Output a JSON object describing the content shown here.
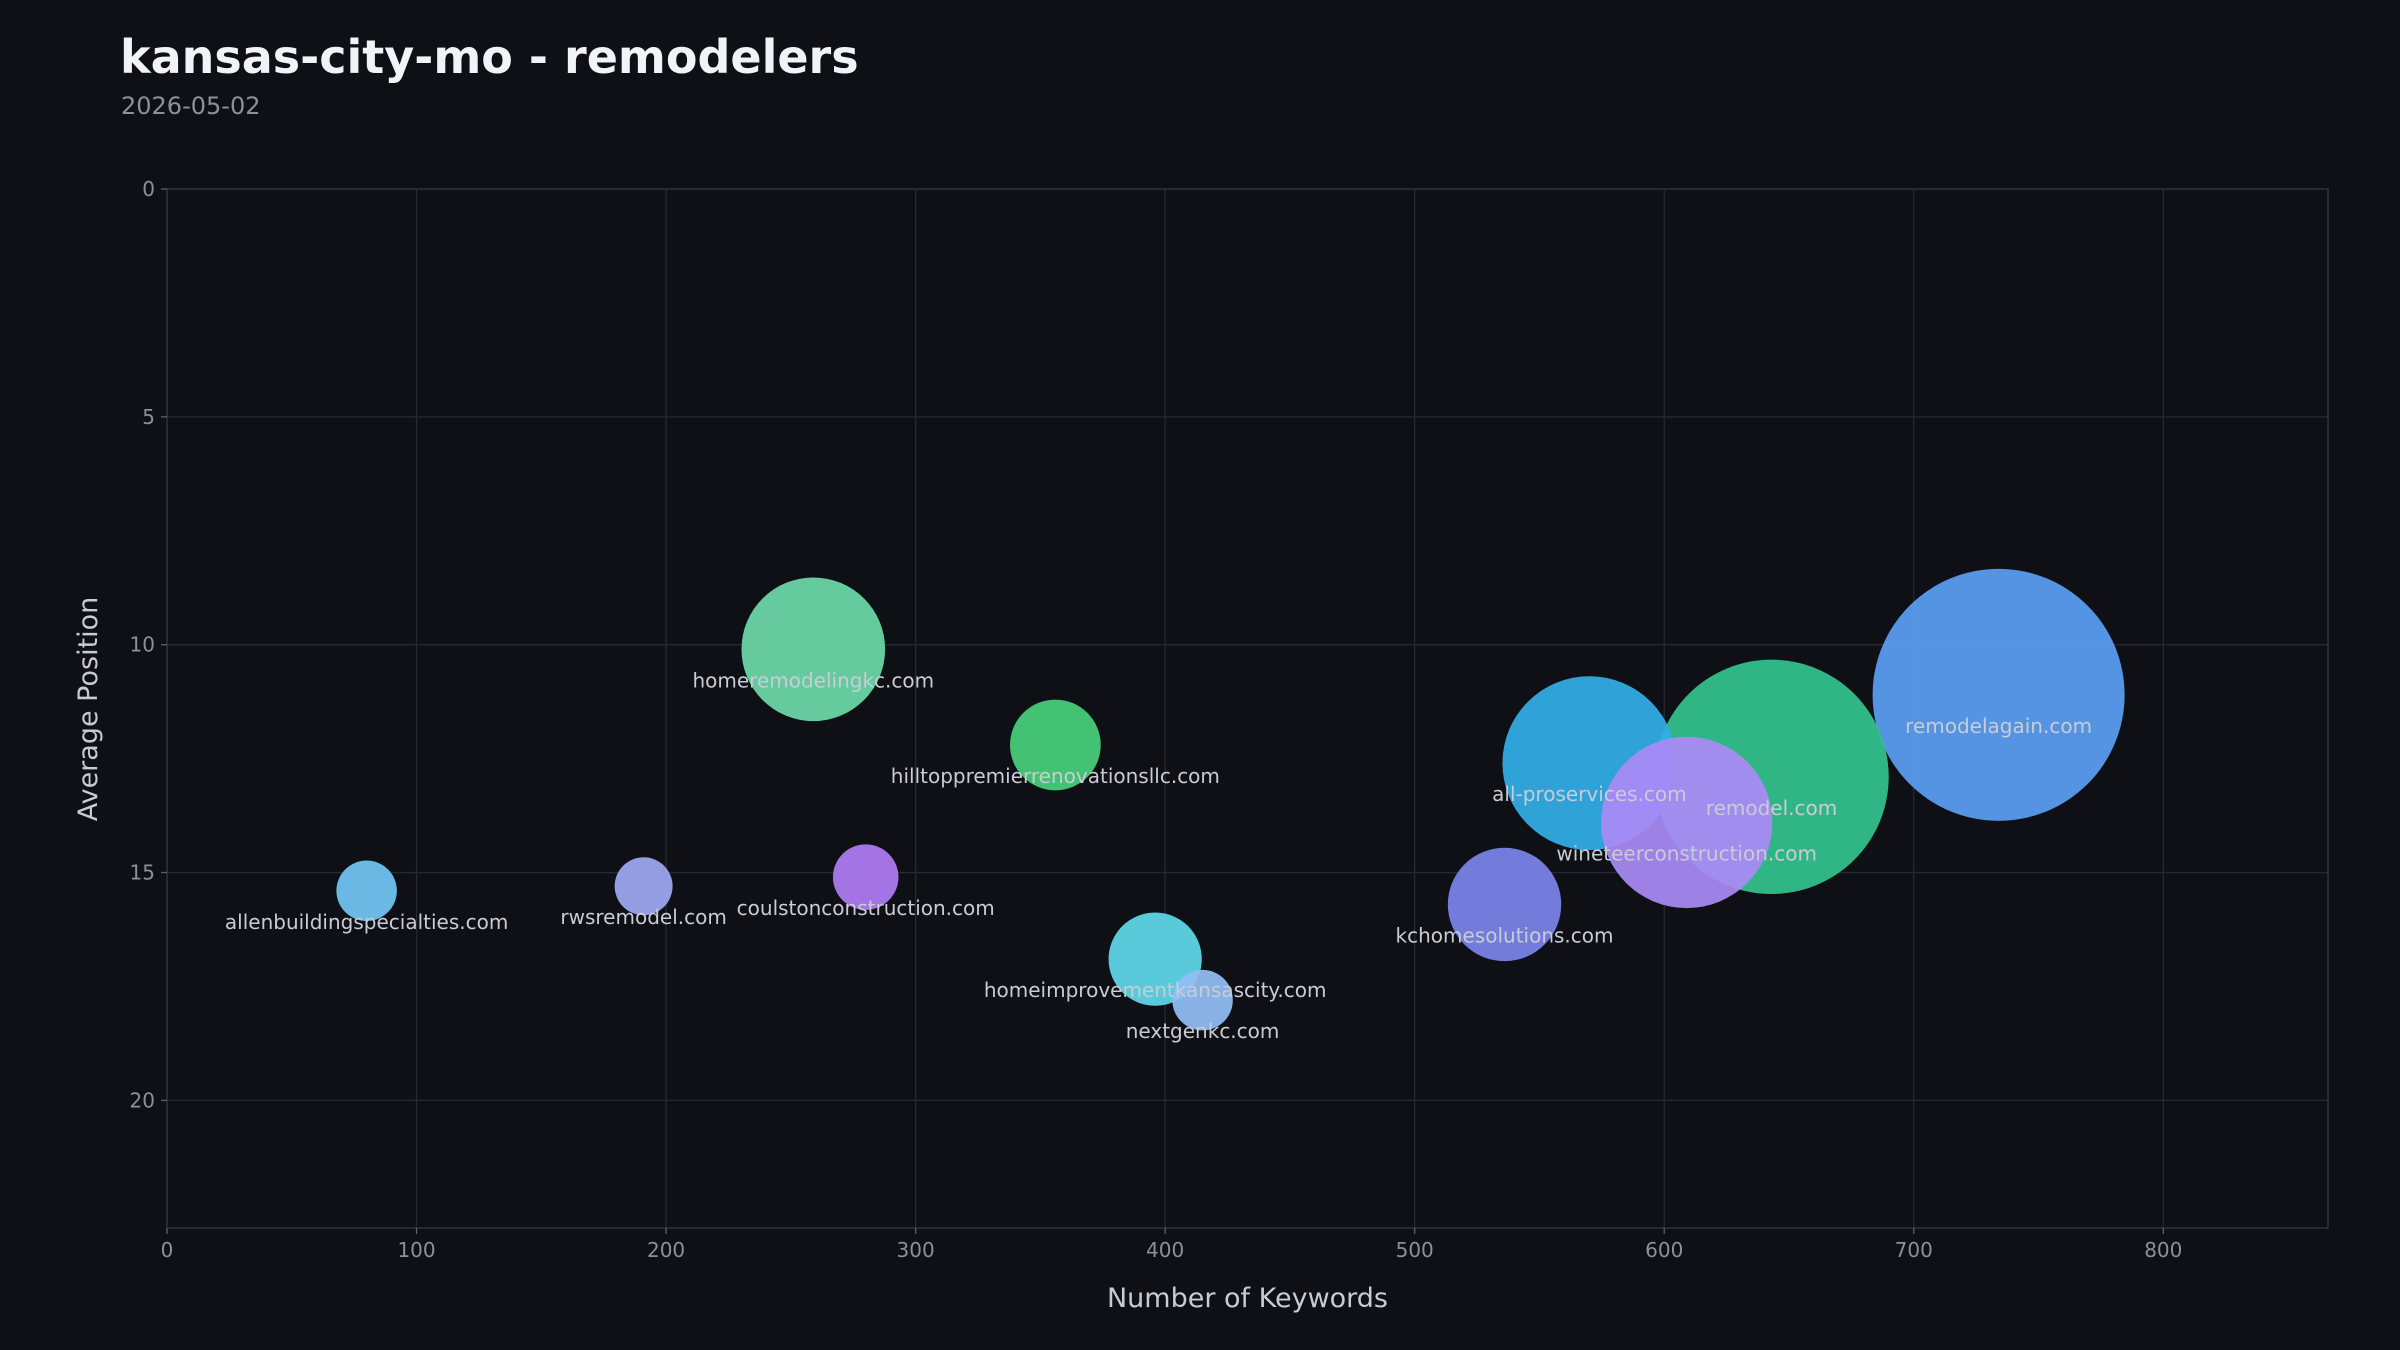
{
  "chart_data": {
    "type": "scatter",
    "title": "kansas-city-mo - remodelers",
    "subtitle": "2026-05-02",
    "xlabel": "Number of Keywords",
    "ylabel": "Average Position",
    "xlim": [
      0,
      866
    ],
    "ylim": [
      0,
      22.8
    ],
    "y_inverted": true,
    "grid": true,
    "x_ticks": [
      "0",
      "100",
      "200",
      "300",
      "400",
      "500",
      "600",
      "700",
      "800"
    ],
    "y_ticks": [
      "0",
      "5",
      "10",
      "15",
      "20"
    ],
    "points": [
      {
        "label": "remodelagain.com",
        "x": 734,
        "y": 11.1,
        "size": 100,
        "color": "#5a9ef3"
      },
      {
        "label": "remodel.com",
        "x": 643,
        "y": 12.9,
        "size": 93,
        "color": "#33c38e"
      },
      {
        "label": "all-proservices.com",
        "x": 570,
        "y": 12.6,
        "size": 69,
        "color": "#31aee7"
      },
      {
        "label": "wineteerconstruction.com",
        "x": 609,
        "y": 13.9,
        "size": 68,
        "color": "#a98af5"
      },
      {
        "label": "homeremodelingkc.com",
        "x": 259,
        "y": 10.1,
        "size": 57,
        "color": "#6cd9aa"
      },
      {
        "label": "kchomesolutions.com",
        "x": 536,
        "y": 15.7,
        "size": 45,
        "color": "#7b84ea"
      },
      {
        "label": "hilltoppremierrenovationsllc.com",
        "x": 356,
        "y": 12.2,
        "size": 36,
        "color": "#48d07c"
      },
      {
        "label": "homeimprovementkansascity.com",
        "x": 396,
        "y": 16.9,
        "size": 37,
        "color": "#5ed8e8"
      },
      {
        "label": "coulstonconstruction.com",
        "x": 280,
        "y": 15.1,
        "size": 26,
        "color": "#b07cf4"
      },
      {
        "label": "allenbuildingspecialties.com",
        "x": 80,
        "y": 15.4,
        "size": 24,
        "color": "#72c5f5"
      },
      {
        "label": "rwsremodel.com",
        "x": 191,
        "y": 15.3,
        "size": 23,
        "color": "#9ea8f2"
      },
      {
        "label": "nextgenkc.com",
        "x": 415,
        "y": 17.8,
        "size": 24,
        "color": "#91bdf5"
      }
    ]
  }
}
